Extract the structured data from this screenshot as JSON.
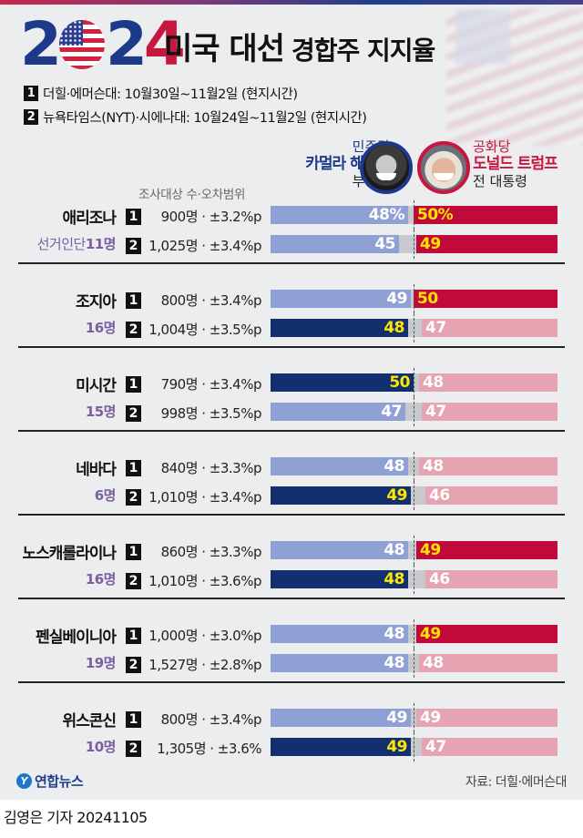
{
  "header": {
    "logo_digits": [
      "2",
      "0",
      "2",
      "4"
    ],
    "title_bold": "미국 대선",
    "title_light": "경합주 지지율",
    "sources": [
      {
        "num": "1",
        "text": "더힐·에머슨대: 10월30일~11월2일 (현지시간)"
      },
      {
        "num": "2",
        "text": "뉴욕타임스(NYT)·시에나대: 10월24일~11월2일 (현지시간)"
      }
    ]
  },
  "candidates": {
    "dem": {
      "party": "민주당",
      "name": "카멀라 해리스",
      "role": "부통령",
      "color": "#1d3a8a"
    },
    "rep": {
      "party": "공화당",
      "name": "도널드 트럼프",
      "role": "전 대통령",
      "color": "#c8173f"
    }
  },
  "column_header": "조사대상 수·오차범위",
  "colors": {
    "harris_lead": "#12306e",
    "harris_other": "#8fa0d4",
    "trump_lead": "#c10a3a",
    "trump_other": "#e6a3b1",
    "undecided": "#c8c9cc",
    "lead_text": "#ffe600",
    "other_text": "#ffffff"
  },
  "chart_data": {
    "type": "bar",
    "title": "2024 미국 대선 경합주 지지율",
    "orientation": "horizontal diverging",
    "series": [
      {
        "name": "카멀라 해리스"
      },
      {
        "name": "도널드 트럼프"
      }
    ],
    "unit": "%",
    "states": [
      {
        "name": "애리조나",
        "ev_prefix": "선거인단",
        "ev": "11명",
        "polls": [
          {
            "num": "1",
            "meta": "900명 · ±3.2%p",
            "harris": 48,
            "trump": 50,
            "harris_label": "48%",
            "trump_label": "50%"
          },
          {
            "num": "2",
            "meta": "1,025명 · ±3.4%p",
            "harris": 45,
            "trump": 49,
            "harris_label": "45",
            "trump_label": "49"
          }
        ]
      },
      {
        "name": "조지아",
        "ev_prefix": "",
        "ev": "16명",
        "polls": [
          {
            "num": "1",
            "meta": "800명 · ±3.4%p",
            "harris": 49,
            "trump": 50,
            "harris_label": "49",
            "trump_label": "50"
          },
          {
            "num": "2",
            "meta": "1,004명 · ±3.5%p",
            "harris": 48,
            "trump": 47,
            "harris_label": "48",
            "trump_label": "47"
          }
        ]
      },
      {
        "name": "미시간",
        "ev_prefix": "",
        "ev": "15명",
        "polls": [
          {
            "num": "1",
            "meta": "790명 · ±3.4%p",
            "harris": 50,
            "trump": 48,
            "harris_label": "50",
            "trump_label": "48"
          },
          {
            "num": "2",
            "meta": "998명 · ±3.5%p",
            "harris": 47,
            "trump": 47,
            "harris_label": "47",
            "trump_label": "47"
          }
        ]
      },
      {
        "name": "네바다",
        "ev_prefix": "",
        "ev": "6명",
        "polls": [
          {
            "num": "1",
            "meta": "840명 · ±3.3%p",
            "harris": 48,
            "trump": 48,
            "harris_label": "48",
            "trump_label": "48"
          },
          {
            "num": "2",
            "meta": "1,010명 · ±3.4%p",
            "harris": 49,
            "trump": 46,
            "harris_label": "49",
            "trump_label": "46"
          }
        ]
      },
      {
        "name": "노스캐롤라이나",
        "ev_prefix": "",
        "ev": "16명",
        "polls": [
          {
            "num": "1",
            "meta": "860명 · ±3.3%p",
            "harris": 48,
            "trump": 49,
            "harris_label": "48",
            "trump_label": "49"
          },
          {
            "num": "2",
            "meta": "1,010명 · ±3.6%p",
            "harris": 48,
            "trump": 46,
            "harris_label": "48",
            "trump_label": "46"
          }
        ]
      },
      {
        "name": "펜실베이니아",
        "ev_prefix": "",
        "ev": "19명",
        "polls": [
          {
            "num": "1",
            "meta": "1,000명 · ±3.0%p",
            "harris": 48,
            "trump": 49,
            "harris_label": "48",
            "trump_label": "49"
          },
          {
            "num": "2",
            "meta": "1,527명 · ±2.8%p",
            "harris": 48,
            "trump": 48,
            "harris_label": "48",
            "trump_label": "48"
          }
        ]
      },
      {
        "name": "위스콘신",
        "ev_prefix": "",
        "ev": "10명",
        "polls": [
          {
            "num": "1",
            "meta": "800명 · ±3.4%p",
            "harris": 49,
            "trump": 49,
            "harris_label": "49",
            "trump_label": "49"
          },
          {
            "num": "2",
            "meta": "1,305명 · ±3.6%",
            "harris": 49,
            "trump": 47,
            "harris_label": "49",
            "trump_label": "47"
          }
        ]
      }
    ]
  },
  "footer": {
    "agency_icon": "yonhap-logo-icon",
    "agency": "연합뉴스",
    "source": "자료: 더힐·에머슨대",
    "byline": "김영은 기자  20241105"
  }
}
